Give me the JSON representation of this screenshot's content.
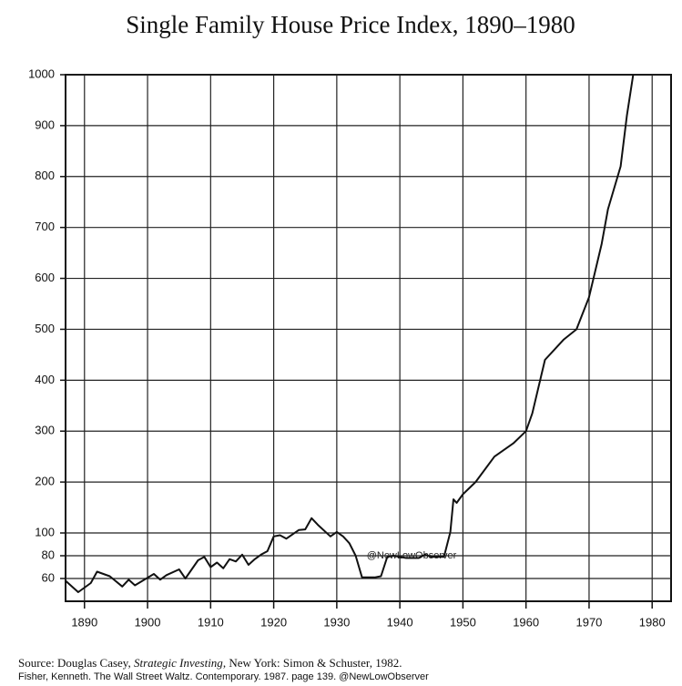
{
  "chart_data": {
    "type": "line",
    "title": "Single Family House Price Index, 1890–1980",
    "x": [
      1887,
      1889,
      1891,
      1892,
      1894,
      1896,
      1897,
      1898,
      1901,
      1902,
      1903,
      1905,
      1906,
      1908,
      1909,
      1910,
      1911,
      1912,
      1913,
      1914,
      1915,
      1916,
      1917,
      1918,
      1919,
      1920,
      1921,
      1922,
      1924,
      1925,
      1926,
      1927,
      1929,
      1930,
      1931,
      1932,
      1933,
      1934,
      1936,
      1937,
      1938,
      1939,
      1941,
      1943,
      1944,
      1945,
      1947,
      1948,
      1948.5,
      1949,
      1950,
      1952,
      1955,
      1958,
      1960,
      1961,
      1963,
      1966,
      1968,
      1970,
      1972,
      1973,
      1975,
      1976,
      1977
    ],
    "series": [
      {
        "name": "Single Family House Price Index",
        "color": "#111111",
        "values": [
          58,
          48,
          56,
          66,
          62,
          53,
          59,
          54,
          64,
          59,
          63,
          68,
          60,
          76,
          79,
          70,
          74,
          69,
          77,
          75,
          81,
          72,
          77,
          81,
          84,
          97,
          98,
          95,
          106,
          107,
          129,
          116,
          97,
          102,
          97,
          91,
          80,
          61,
          61,
          62,
          79,
          80,
          78,
          78,
          81,
          79,
          79,
          102,
          166,
          159,
          176,
          200,
          250,
          276,
          300,
          335,
          440,
          480,
          500,
          563,
          668,
          736,
          820,
          920,
          1000
        ]
      }
    ],
    "xlim": [
      1887,
      1983
    ],
    "xticks": [
      1890,
      1900,
      1910,
      1920,
      1930,
      1940,
      1950,
      1960,
      1970,
      1980
    ],
    "ylim": [
      40,
      1000
    ],
    "yticks": [
      60,
      80,
      100,
      200,
      300,
      400,
      500,
      600,
      700,
      800,
      900,
      1000
    ],
    "grid": true,
    "annotation": "@NewLowObserver",
    "source_prefix": "Source:  Douglas Casey, ",
    "source_title": "Strategic Investing",
    "source_rest": ", New York: Simon & Schuster, 1982.",
    "source_line2": "Fisher, Kenneth. The Wall Street Waltz. Contemporary. 1987. page 139. @NewLowObserver"
  }
}
